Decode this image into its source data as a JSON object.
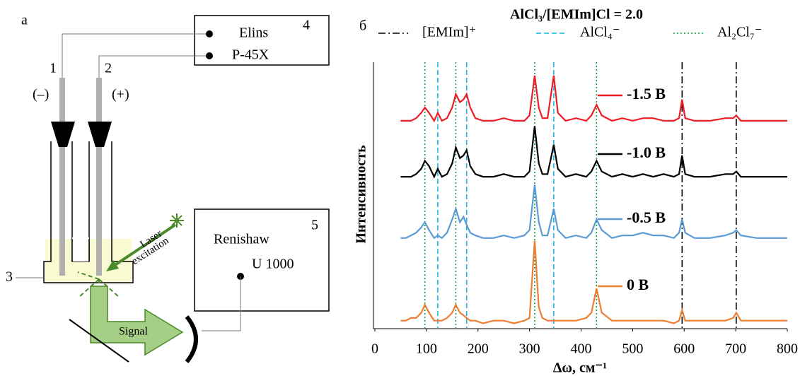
{
  "diagram": {
    "panel_letter": "а",
    "box4": {
      "number": "4",
      "line1": "Elins",
      "line2": "P-45X"
    },
    "box5": {
      "number": "5",
      "line1": "Renishaw",
      "line2": "U 1000"
    },
    "electrode1": {
      "number": "1",
      "polarity": "(–)"
    },
    "electrode2": {
      "number": "2",
      "polarity": "(+)"
    },
    "cell_number": "3",
    "laser1": "Laser",
    "laser2": "excitation",
    "signal": "Signal"
  },
  "chart_data": {
    "type": "line",
    "panel_letter": "б",
    "title": "AlCl₃/[EMIm]Cl = 2.0",
    "x_label": "Δω, см⁻¹",
    "y_label": "Интенсивность",
    "x": [
      50,
      60,
      70,
      80,
      90,
      97,
      105,
      115,
      122,
      130,
      140,
      150,
      157,
      165,
      172,
      178,
      185,
      195,
      210,
      230,
      250,
      270,
      290,
      300,
      310,
      318,
      325,
      335,
      347,
      355,
      370,
      390,
      410,
      420,
      430,
      440,
      460,
      480,
      500,
      520,
      540,
      560,
      580,
      590,
      596,
      602,
      620,
      650,
      680,
      695,
      701,
      710,
      740,
      770,
      800
    ],
    "series": [
      {
        "name": "-1.5 В",
        "color": "#ee1c25",
        "values": [
          78,
          78,
          78,
          79,
          81,
          83,
          81,
          78,
          81,
          78,
          79,
          83,
          88,
          85,
          86,
          88,
          83,
          79,
          78,
          78,
          79,
          78,
          78,
          80,
          95,
          83,
          79,
          79,
          95,
          81,
          78,
          79,
          78,
          80,
          84,
          80,
          78,
          79,
          78,
          79,
          79,
          78,
          78,
          79,
          86,
          79,
          78,
          78,
          79,
          79,
          80,
          78,
          78,
          78,
          78
        ]
      },
      {
        "name": "-1.0 В",
        "color": "#000000",
        "values": [
          57,
          57,
          57,
          58,
          60,
          63,
          61,
          57,
          60,
          57,
          58,
          62,
          68,
          64,
          65,
          67,
          61,
          58,
          57,
          57,
          58,
          57,
          57,
          59,
          76,
          62,
          58,
          58,
          69,
          60,
          57,
          58,
          57,
          59,
          63,
          59,
          57,
          58,
          57,
          58,
          57,
          58,
          57,
          58,
          65,
          58,
          57,
          57,
          58,
          58,
          59,
          57,
          57,
          57,
          57
        ]
      },
      {
        "name": "-0.5 В",
        "color": "#5b9bd5",
        "values": [
          34,
          34,
          35,
          36,
          38,
          40,
          37,
          34,
          35,
          34,
          36,
          41,
          45,
          40,
          42,
          39,
          36,
          35,
          34,
          34,
          35,
          34,
          35,
          37,
          54,
          40,
          35,
          35,
          45,
          37,
          34,
          35,
          34,
          36,
          41,
          37,
          34,
          35,
          35,
          36,
          35,
          35,
          34,
          36,
          41,
          36,
          34,
          34,
          35,
          36,
          37,
          35,
          34,
          34,
          34
        ]
      },
      {
        "name": "0 В",
        "color": "#ed7d31",
        "values": [
          3,
          3,
          4,
          4,
          6,
          9,
          6,
          3,
          3,
          3,
          4,
          6,
          9,
          6,
          5,
          4,
          3,
          3,
          2,
          3,
          3,
          2,
          3,
          4,
          33,
          8,
          4,
          3,
          3,
          3,
          3,
          3,
          4,
          6,
          15,
          6,
          3,
          3,
          3,
          3,
          3,
          3,
          2,
          3,
          7,
          3,
          3,
          3,
          3,
          4,
          6,
          3,
          3,
          3,
          3
        ]
      }
    ],
    "reference_lines": [
      {
        "name": "[EMIm]⁺",
        "color": "#000000",
        "style": "dashdot",
        "x": [
          596,
          701
        ]
      },
      {
        "name": "AlCl₄⁻",
        "color": "#1fb4e0",
        "style": "dashed",
        "x": [
          122,
          178,
          347
        ]
      },
      {
        "name": "Al₂Cl₇⁻",
        "color": "#0d9f3e",
        "style": "dotted",
        "x": [
          97,
          157,
          310,
          430
        ]
      }
    ],
    "xlim": [
      0,
      800
    ],
    "xticks": [
      0,
      100,
      200,
      300,
      400,
      500,
      600,
      700,
      800
    ],
    "ylim": [
      0,
      100
    ]
  }
}
